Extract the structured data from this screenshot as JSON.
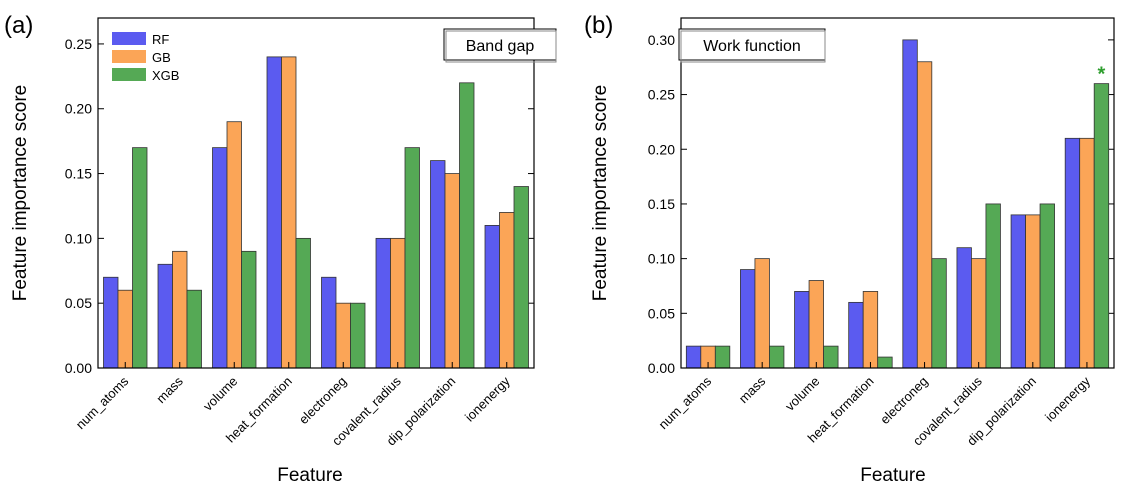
{
  "chart_data": [
    {
      "type": "bar",
      "panel_label": "(a)",
      "annotation": "Band gap",
      "xlabel": "Feature",
      "ylabel": "Feature importance score",
      "ylim": [
        0,
        0.27
      ],
      "yticks": [
        "0.00",
        "0.05",
        "0.10",
        "0.15",
        "0.20",
        "0.25"
      ],
      "legend_position": "top-left",
      "categories": [
        "num_atoms",
        "mass",
        "volume",
        "heat_formation",
        "electroneg",
        "covalent_radius",
        "dip_polarization",
        "ionenergy"
      ],
      "series": [
        {
          "name": "RF",
          "color": "#5b5bf0",
          "values": [
            0.07,
            0.08,
            0.17,
            0.24,
            0.07,
            0.1,
            0.16,
            0.11
          ]
        },
        {
          "name": "GB",
          "color": "#fba557",
          "values": [
            0.06,
            0.09,
            0.19,
            0.24,
            0.05,
            0.1,
            0.15,
            0.12
          ]
        },
        {
          "name": "XGB",
          "color": "#55a955",
          "values": [
            0.17,
            0.06,
            0.09,
            0.1,
            0.05,
            0.17,
            0.22,
            0.14
          ]
        }
      ]
    },
    {
      "type": "bar",
      "panel_label": "(b)",
      "annotation": "Work function",
      "marker": "*",
      "marker_color": "#2e9e2e",
      "marker_category_index": 7,
      "xlabel": "Feature",
      "ylabel": "Feature importance score",
      "ylim": [
        0,
        0.32
      ],
      "yticks": [
        "0.00",
        "0.05",
        "0.10",
        "0.15",
        "0.20",
        "0.25",
        "0.30"
      ],
      "categories": [
        "num_atoms",
        "mass",
        "volume",
        "heat_formation",
        "electroneg",
        "covalent_radius",
        "dip_polarization",
        "ionenergy"
      ],
      "series": [
        {
          "name": "RF",
          "color": "#5b5bf0",
          "values": [
            0.02,
            0.09,
            0.07,
            0.06,
            0.3,
            0.11,
            0.14,
            0.21
          ]
        },
        {
          "name": "GB",
          "color": "#fba557",
          "values": [
            0.02,
            0.1,
            0.08,
            0.07,
            0.28,
            0.1,
            0.14,
            0.21
          ]
        },
        {
          "name": "XGB",
          "color": "#55a955",
          "values": [
            0.02,
            0.02,
            0.02,
            0.01,
            0.1,
            0.15,
            0.15,
            0.26
          ]
        }
      ]
    }
  ]
}
